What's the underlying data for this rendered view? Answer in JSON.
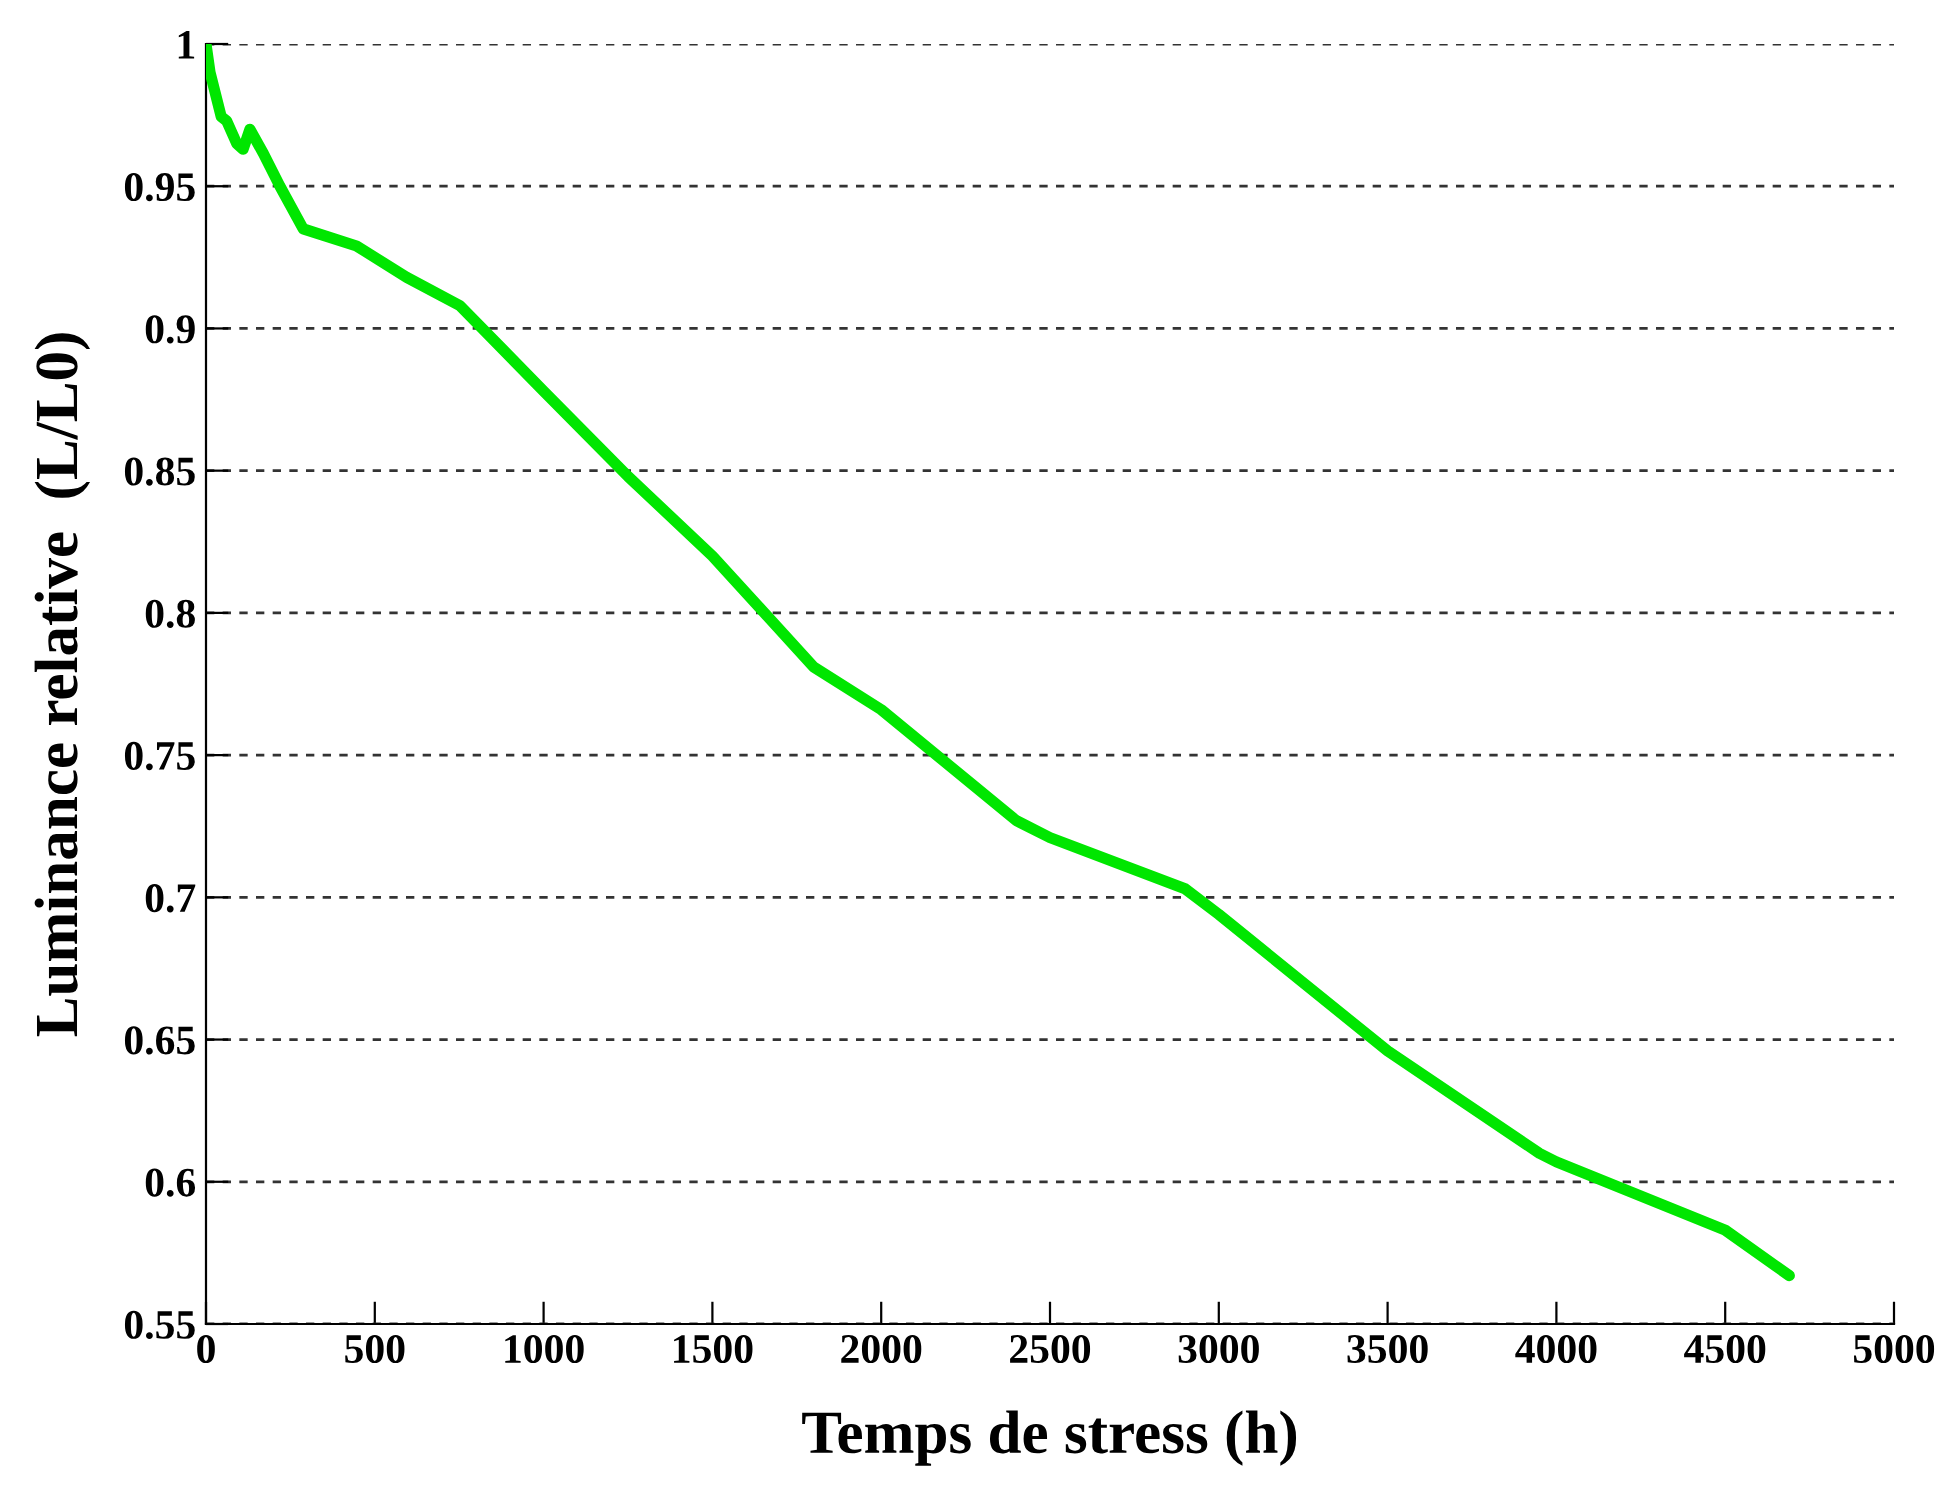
{
  "chart_data": {
    "type": "line",
    "xlabel": "Temps de stress (h)",
    "ylabel": "Luminance relative  (L/L0)",
    "x": [
      0,
      12,
      45,
      61,
      91,
      110,
      130,
      170,
      219,
      288,
      446,
      594,
      752,
      1000,
      1250,
      1500,
      1800,
      2000,
      2400,
      2500,
      2900,
      3000,
      3500,
      3950,
      4000,
      4500,
      4690
    ],
    "series": [
      {
        "color": "#00e600",
        "values": [
          1.0,
          0.99,
          0.9745,
          0.973,
          0.965,
          0.963,
          0.97,
          0.9615,
          0.95,
          0.935,
          0.929,
          0.918,
          0.908,
          0.878,
          0.848,
          0.82,
          0.781,
          0.766,
          0.727,
          0.721,
          0.703,
          0.694,
          0.646,
          0.61,
          0.607,
          0.583,
          0.567
        ]
      }
    ],
    "xlim": [
      0,
      5000
    ],
    "ylim": [
      0.55,
      1
    ],
    "xticks": [
      0,
      500,
      1000,
      1500,
      2000,
      2500,
      3000,
      3500,
      4000,
      4500,
      5000
    ],
    "yticks": [
      0.55,
      0.6,
      0.65,
      0.7,
      0.75,
      0.8,
      0.85,
      0.9,
      0.95,
      1
    ],
    "grid": "y",
    "line_style": "solid",
    "marker": "none",
    "legend": false
  }
}
